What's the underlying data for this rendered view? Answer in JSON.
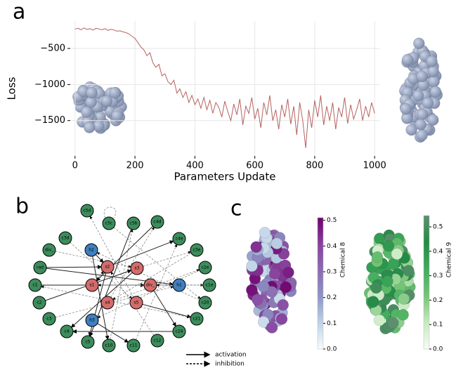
{
  "panel_labels": [
    "a",
    "b",
    "c"
  ],
  "chart_data": [
    {
      "type": "line",
      "xlabel": "Parameters Update",
      "ylabel": "Loss",
      "color": "#b5625f",
      "grid": true,
      "xlim": [
        -16,
        1016
      ],
      "ylim": [
        -1990,
        -120
      ],
      "xticks": [
        0,
        200,
        400,
        600,
        800,
        1000
      ],
      "yticks": [
        {
          "value": -500,
          "label": "−500"
        },
        {
          "value": -1000,
          "label": "−1000"
        },
        {
          "value": -1500,
          "label": "−1500"
        }
      ],
      "x": [
        0,
        10,
        20,
        30,
        40,
        50,
        60,
        70,
        80,
        90,
        100,
        110,
        120,
        130,
        140,
        150,
        160,
        170,
        180,
        190,
        200,
        210,
        220,
        230,
        240,
        250,
        260,
        270,
        280,
        290,
        300,
        310,
        320,
        330,
        340,
        350,
        360,
        370,
        380,
        390,
        400,
        410,
        420,
        430,
        440,
        450,
        460,
        470,
        480,
        490,
        500,
        510,
        520,
        530,
        540,
        550,
        560,
        570,
        580,
        590,
        600,
        610,
        620,
        630,
        640,
        650,
        660,
        670,
        680,
        690,
        700,
        710,
        720,
        730,
        740,
        750,
        760,
        770,
        780,
        790,
        800,
        810,
        820,
        830,
        840,
        850,
        860,
        870,
        880,
        890,
        900,
        910,
        920,
        930,
        940,
        950,
        960,
        970,
        980,
        990,
        1000
      ],
      "values": [
        -230,
        -220,
        -240,
        -215,
        -235,
        -225,
        -245,
        -220,
        -230,
        -240,
        -225,
        -250,
        -235,
        -245,
        -260,
        -255,
        -270,
        -280,
        -300,
        -330,
        -360,
        -420,
        -480,
        -520,
        -600,
        -560,
        -700,
        -760,
        -720,
        -880,
        -850,
        -960,
        -1000,
        -940,
        -1120,
        -1060,
        -1180,
        -1100,
        -1250,
        -1150,
        -1280,
        -1200,
        -1330,
        -1180,
        -1350,
        -1220,
        -1400,
        -1250,
        -1320,
        -1450,
        -1230,
        -1380,
        -1500,
        -1270,
        -1420,
        -1200,
        -1560,
        -1300,
        -1400,
        -1180,
        -1480,
        -1330,
        -1600,
        -1250,
        -1420,
        -1150,
        -1500,
        -1350,
        -1620,
        -1280,
        -1450,
        -1200,
        -1550,
        -1300,
        -1700,
        -1250,
        -1500,
        -1880,
        -1350,
        -1600,
        -1220,
        -1450,
        -1150,
        -1560,
        -1300,
        -1500,
        -1250,
        -1620,
        -1320,
        -1450,
        -1180,
        -1540,
        -1280,
        -1480,
        -1350,
        -1200,
        -1500,
        -1300,
        -1450,
        -1250,
        -1400
      ]
    },
    {
      "type": "colorbar",
      "label": "Chemical 8",
      "ylim": [
        0,
        0.51
      ],
      "yticks": [
        {
          "value": 0,
          "label": "0.0"
        },
        0.1,
        0.2,
        0.3,
        0.4,
        0.5
      ],
      "colors": [
        "#f7fcfd",
        "#bfd3e6",
        "#8c96c6",
        "#8c6bb1",
        "#88419d",
        "#6e016b"
      ]
    },
    {
      "type": "colorbar",
      "label": "Chemical 9",
      "ylim": [
        0,
        0.546
      ],
      "yticks": [
        {
          "value": 0,
          "label": "0.0"
        },
        0.1,
        0.2,
        0.3,
        0.4,
        0.5
      ],
      "colors": [
        "#f7fcf5",
        "#c7e9c0",
        "#74c476",
        "#41ab5d",
        "#238b45",
        "#5d8f6e"
      ]
    }
  ],
  "diagram": {
    "nodes": [
      {
        "label": "c5d",
        "color": "#3c8c5c"
      },
      {
        "label": "c5c",
        "color": "#3c8c5c"
      },
      {
        "label": "c5b",
        "color": "#3c8c5c"
      },
      {
        "label": "c4d",
        "color": "#3c8c5c"
      },
      {
        "label": "c3d",
        "color": "#3c8c5c"
      },
      {
        "label": "div_",
        "color": "#3c8c5c"
      },
      {
        "label": "rad",
        "color": "#3c8c5c"
      },
      {
        "label": "c1",
        "color": "#3c8c5c"
      },
      {
        "label": "c2",
        "color": "#3c8c5c"
      },
      {
        "label": "c3",
        "color": "#3c8c5c"
      },
      {
        "label": "c4",
        "color": "#3c8c5c"
      },
      {
        "label": "c5",
        "color": "#3c8c5c"
      },
      {
        "label": "c10",
        "color": "#3c8c5c"
      },
      {
        "label": "c11",
        "color": "#3c8c5c"
      },
      {
        "label": "c12",
        "color": "#3c8c5c"
      },
      {
        "label": "c24",
        "color": "#3c8c5c"
      },
      {
        "label": "c4e",
        "color": "#3c8c5c"
      },
      {
        "label": "c3e",
        "color": "#3c8c5c"
      },
      {
        "label": "c2e",
        "color": "#3c8c5c"
      },
      {
        "label": "c1e",
        "color": "#3c8c5c"
      },
      {
        "label": "c20",
        "color": "#3c8c5c"
      },
      {
        "label": "c21",
        "color": "#3c8c5c"
      },
      {
        "label": "s2",
        "color": "#d46b6b"
      },
      {
        "label": "s3",
        "color": "#d46b6b"
      },
      {
        "label": "s1",
        "color": "#d46b6b"
      },
      {
        "label": "div_",
        "color": "#d46b6b"
      },
      {
        "label": "s4",
        "color": "#d46b6b"
      },
      {
        "label": "s5",
        "color": "#d46b6b"
      },
      {
        "label": "h2",
        "color": "#3f7fbf"
      },
      {
        "label": "h1",
        "color": "#3f7fbf"
      },
      {
        "label": "h3",
        "color": "#3f7fbf"
      }
    ],
    "legend": [
      "activation",
      "inhibition"
    ]
  }
}
